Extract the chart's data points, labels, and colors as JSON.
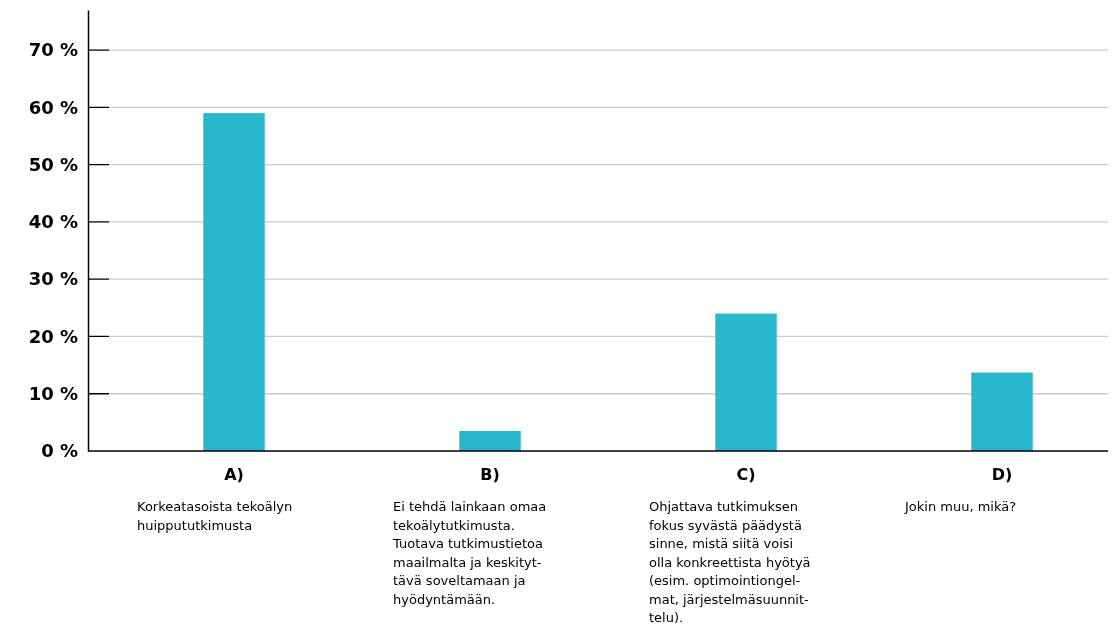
{
  "chart_data": {
    "type": "bar",
    "categories": [
      "A)\nKorkeatasoista tekoälyn\nhuippututkimusta",
      "B)\nEi tehdä lainkaan omaa\ntekoälytutkimusta.\nTuotava tutkimustietoa\nmaailmalta ja keskityt-\ntävä soveltamaan ja\nhyödyntämään.",
      "C)\nOhjattava tutkimuksen\nfokus syvästä päädystä\nsinne, mistä siitä voisi\nolla konkreettista hyötyä\n(esim. optimointiongel-\nmat, järjestelmäsuunnit-\ntelu).",
      "D)\nJokin muu, mikä?"
    ],
    "values": [
      59,
      3.5,
      24,
      13.7
    ],
    "colors": [
      "#2ab7cc",
      "#2ab7cc",
      "#2ab7cc",
      "#2ab7cc"
    ],
    "ylim": [
      0,
      77
    ],
    "yticks": [
      {
        "value": 0,
        "label": "0 %"
      },
      {
        "value": 10,
        "label": "10 %"
      },
      {
        "value": 20,
        "label": "20 %"
      },
      {
        "value": 30,
        "label": "30 %"
      },
      {
        "value": 40,
        "label": "40 %"
      },
      {
        "value": 50,
        "label": "50 %"
      },
      {
        "value": 60,
        "label": "60 %"
      },
      {
        "value": 70,
        "label": "70 %"
      }
    ],
    "grid": "y"
  }
}
